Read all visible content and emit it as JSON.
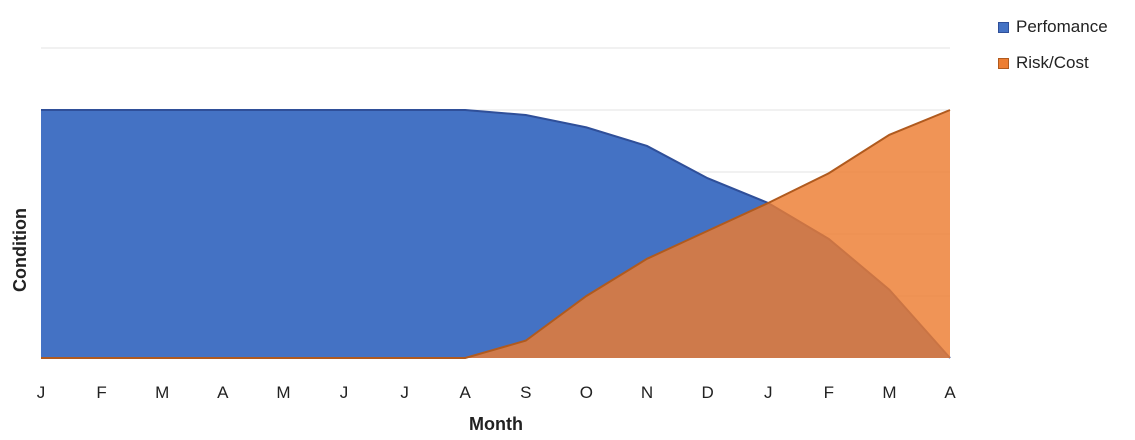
{
  "chart_data": {
    "type": "area",
    "xlabel": "Month",
    "ylabel": "Condition",
    "categories": [
      "J",
      "F",
      "M",
      "A",
      "M",
      "J",
      "J",
      "A",
      "S",
      "O",
      "N",
      "D",
      "J",
      "F",
      "M",
      "A"
    ],
    "ylim": [
      0,
      5
    ],
    "grid": true,
    "legend_position": "top-right",
    "series": [
      {
        "name": "Perfomance",
        "color": "#4472C4",
        "values": [
          4,
          4,
          4,
          4,
          4,
          4,
          4,
          4,
          3.92,
          3.72,
          3.42,
          2.9,
          2.5,
          1.92,
          1.1,
          0
        ]
      },
      {
        "name": "Risk/Cost",
        "color": "#ED7D31",
        "values": [
          0,
          0,
          0,
          0,
          0,
          0,
          0,
          0,
          0.28,
          1.0,
          1.6,
          2.05,
          2.5,
          2.98,
          3.6,
          4
        ]
      }
    ]
  }
}
